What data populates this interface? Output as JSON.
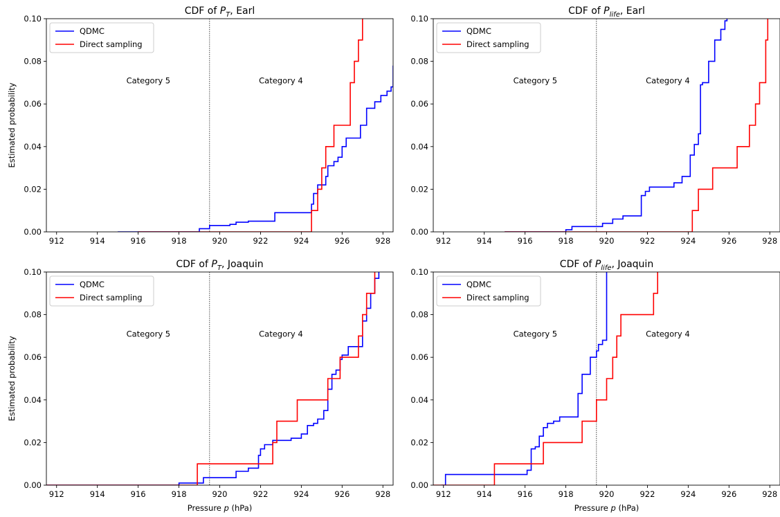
{
  "chart_data": [
    {
      "type": "line",
      "title": "CDF of P_T, Earl",
      "title_parts": {
        "prefix": "CDF of ",
        "var": "P",
        "sub": "T",
        "suffix": ", Earl"
      },
      "xlabel": "",
      "xlabel_parts": null,
      "ylabel": "Estimated probability",
      "xlim": [
        911.5,
        928.5
      ],
      "ylim": [
        0,
        0.1
      ],
      "xticks": [
        "912",
        "914",
        "916",
        "918",
        "920",
        "922",
        "924",
        "926",
        "928"
      ],
      "xtick_values": [
        912,
        914,
        916,
        918,
        920,
        922,
        924,
        926,
        928
      ],
      "yticks": [
        "0.00",
        "0.02",
        "0.04",
        "0.06",
        "0.08",
        "0.10"
      ],
      "ytick_values": [
        0,
        0.02,
        0.04,
        0.06,
        0.08,
        0.1
      ],
      "threshold": 919.5,
      "annotations": [
        "Category 5",
        "Category 4"
      ],
      "annotation_x": [
        916.5,
        923
      ],
      "annotation_y": 0.071,
      "legend_position": "upper-left",
      "series": [
        {
          "name": "QDMC",
          "color": "#0000ff",
          "step": true,
          "x": [
            915,
            919,
            919.5,
            920.5,
            920.8,
            921.4,
            922.7,
            924.5,
            924.6,
            924.8,
            924.9,
            925.2,
            925.3,
            925.6,
            925.8,
            926,
            926.2,
            926.4,
            926.6,
            926.9,
            927.2,
            927.4,
            927.6,
            927.9,
            928.2,
            928.4,
            928.5
          ],
          "y": [
            0,
            0.0015,
            0.003,
            0.0035,
            0.0045,
            0.005,
            0.009,
            0.013,
            0.018,
            0.022,
            0.022,
            0.026,
            0.031,
            0.033,
            0.035,
            0.04,
            0.044,
            0.044,
            0.044,
            0.05,
            0.058,
            0.058,
            0.061,
            0.064,
            0.066,
            0.068,
            0.078
          ]
        },
        {
          "name": "Direct sampling",
          "color": "#ff0000",
          "step": true,
          "x": [
            916,
            924.5,
            924.8,
            925.0,
            925.2,
            925.6,
            926.4,
            926.6,
            926.8,
            927.0
          ],
          "y": [
            0,
            0.01,
            0.02,
            0.03,
            0.04,
            0.05,
            0.07,
            0.08,
            0.09,
            0.1
          ]
        }
      ]
    },
    {
      "type": "line",
      "title": "CDF of P_life, Earl",
      "title_parts": {
        "prefix": "CDF of ",
        "var": "P",
        "sub": "life",
        "suffix": ", Earl"
      },
      "xlabel": "",
      "xlabel_parts": null,
      "ylabel": "",
      "xlim": [
        911.5,
        928.5
      ],
      "ylim": [
        0,
        0.1
      ],
      "xticks": [
        "912",
        "914",
        "916",
        "918",
        "920",
        "922",
        "924",
        "926",
        "928"
      ],
      "xtick_values": [
        912,
        914,
        916,
        918,
        920,
        922,
        924,
        926,
        928
      ],
      "yticks": [
        "0.00",
        "0.02",
        "0.04",
        "0.06",
        "0.08",
        "0.10"
      ],
      "ytick_values": [
        0,
        0.02,
        0.04,
        0.06,
        0.08,
        0.1
      ],
      "threshold": 919.5,
      "annotations": [
        "Category 5",
        "Category 4"
      ],
      "annotation_x": [
        916.5,
        923
      ],
      "annotation_y": 0.071,
      "legend_position": "upper-left",
      "series": [
        {
          "name": "QDMC",
          "color": "#0000ff",
          "step": true,
          "x": [
            915,
            918,
            918.3,
            919.8,
            920.3,
            920.8,
            921.7,
            921.9,
            922.1,
            923.3,
            923.7,
            924.1,
            924.3,
            924.5,
            924.6,
            924.7,
            925.0,
            925.3,
            925.6,
            925.8,
            925.9
          ],
          "y": [
            0,
            0.001,
            0.0025,
            0.004,
            0.006,
            0.0075,
            0.017,
            0.019,
            0.021,
            0.023,
            0.026,
            0.036,
            0.041,
            0.046,
            0.069,
            0.07,
            0.08,
            0.09,
            0.095,
            0.099,
            0.1
          ]
        },
        {
          "name": "Direct sampling",
          "color": "#ff0000",
          "step": true,
          "x": [
            915,
            924.2,
            924.5,
            925.2,
            926.4,
            927.0,
            927.3,
            927.5,
            927.8,
            927.9
          ],
          "y": [
            0,
            0.01,
            0.02,
            0.03,
            0.04,
            0.05,
            0.06,
            0.07,
            0.09,
            0.1
          ]
        }
      ]
    },
    {
      "type": "line",
      "title": "CDF of P_T, Joaquin",
      "title_parts": {
        "prefix": "CDF of ",
        "var": "P",
        "sub": "T",
        "suffix": ", Joaquin"
      },
      "xlabel": "Pressure p (hPa)",
      "xlabel_parts": {
        "prefix": "Pressure ",
        "var": "p",
        "suffix": " (hPa)"
      },
      "ylabel": "Estimated probability",
      "xlim": [
        911.5,
        928.5
      ],
      "ylim": [
        0,
        0.1
      ],
      "xticks": [
        "912",
        "914",
        "916",
        "918",
        "920",
        "922",
        "924",
        "926",
        "928"
      ],
      "xtick_values": [
        912,
        914,
        916,
        918,
        920,
        922,
        924,
        926,
        928
      ],
      "yticks": [
        "0.00",
        "0.02",
        "0.04",
        "0.06",
        "0.08",
        "0.10"
      ],
      "ytick_values": [
        0,
        0.02,
        0.04,
        0.06,
        0.08,
        0.1
      ],
      "threshold": 919.5,
      "annotations": [
        "Category 5",
        "Category 4"
      ],
      "annotation_x": [
        916.5,
        923
      ],
      "annotation_y": 0.071,
      "legend_position": "upper-left",
      "series": [
        {
          "name": "QDMC",
          "color": "#0000ff",
          "step": true,
          "x": [
            911.5,
            918,
            919.2,
            920.8,
            921.4,
            921.9,
            922.0,
            922.2,
            922.6,
            923.5,
            924.0,
            924.3,
            924.6,
            924.8,
            925.1,
            925.3,
            925.5,
            925.7,
            925.9,
            926.0,
            926.3,
            926.5,
            926.8,
            927.0,
            927.2,
            927.4,
            927.6,
            927.8
          ],
          "y": [
            0,
            0.001,
            0.0035,
            0.0065,
            0.008,
            0.014,
            0.017,
            0.019,
            0.021,
            0.022,
            0.024,
            0.028,
            0.029,
            0.031,
            0.035,
            0.045,
            0.052,
            0.054,
            0.059,
            0.061,
            0.065,
            0.065,
            0.065,
            0.077,
            0.083,
            0.09,
            0.097,
            0.1
          ]
        },
        {
          "name": "Direct sampling",
          "color": "#ff0000",
          "step": true,
          "x": [
            911.5,
            918.9,
            922.0,
            922.6,
            922.8,
            923.8,
            925.3,
            925.9,
            926.8,
            927.0,
            927.2,
            927.6
          ],
          "y": [
            0,
            0.01,
            0.01,
            0.02,
            0.03,
            0.04,
            0.05,
            0.06,
            0.07,
            0.08,
            0.09,
            0.1
          ]
        }
      ]
    },
    {
      "type": "line",
      "title": "CDF of P_life, Joaquin",
      "title_parts": {
        "prefix": "CDF of ",
        "var": "P",
        "sub": "life",
        "suffix": ", Joaquin"
      },
      "xlabel": "Pressure p (hPa)",
      "xlabel_parts": {
        "prefix": "Pressure ",
        "var": "p",
        "suffix": " (hPa)"
      },
      "ylabel": "",
      "xlim": [
        911.5,
        928.5
      ],
      "ylim": [
        0,
        0.1
      ],
      "xticks": [
        "912",
        "914",
        "916",
        "918",
        "920",
        "922",
        "924",
        "926",
        "928"
      ],
      "xtick_values": [
        912,
        914,
        916,
        918,
        920,
        922,
        924,
        926,
        928
      ],
      "yticks": [
        "0.00",
        "0.02",
        "0.04",
        "0.06",
        "0.08",
        "0.10"
      ],
      "ytick_values": [
        0,
        0.02,
        0.04,
        0.06,
        0.08,
        0.1
      ],
      "threshold": 919.5,
      "annotations": [
        "Category 5",
        "Category 4"
      ],
      "annotation_x": [
        916.5,
        923
      ],
      "annotation_y": 0.071,
      "legend_position": "upper-left",
      "series": [
        {
          "name": "QDMC",
          "color": "#0000ff",
          "step": true,
          "x": [
            911.9,
            912.1,
            916.1,
            916.3,
            916.5,
            916.7,
            916.9,
            917.1,
            917.4,
            917.7,
            918.6,
            918.8,
            919.2,
            919.5,
            919.6,
            919.8,
            920.0
          ],
          "y": [
            0,
            0.005,
            0.007,
            0.017,
            0.018,
            0.023,
            0.027,
            0.029,
            0.03,
            0.032,
            0.043,
            0.052,
            0.06,
            0.063,
            0.066,
            0.068,
            0.1
          ]
        },
        {
          "name": "Direct sampling",
          "color": "#ff0000",
          "step": true,
          "x": [
            911.5,
            914.5,
            916.9,
            918.8,
            919.5,
            920.0,
            920.3,
            920.5,
            920.7,
            922.3,
            922.5
          ],
          "y": [
            0,
            0.01,
            0.02,
            0.03,
            0.04,
            0.05,
            0.06,
            0.07,
            0.08,
            0.09,
            0.1
          ]
        }
      ]
    }
  ]
}
